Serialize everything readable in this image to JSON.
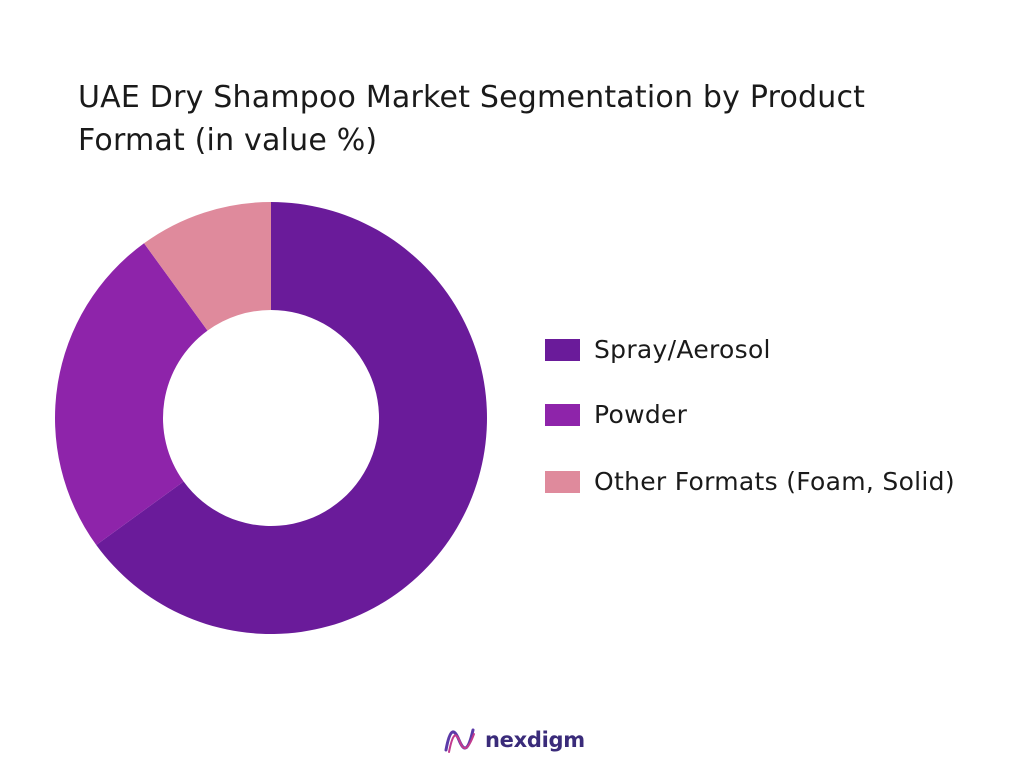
{
  "title": {
    "line1": "UAE Dry Shampoo Market Segmentation by Product",
    "line2": "Format (in value %)"
  },
  "chart_data": {
    "type": "pie",
    "variant": "donut",
    "categories": [
      "Spray/Aerosol",
      "Powder",
      "Other Formats (Foam, Solid)"
    ],
    "values": [
      65,
      25,
      10
    ],
    "colors": [
      "#6a1b9a",
      "#8e24aa",
      "#df8a9c"
    ],
    "legend_position": "right"
  },
  "brand": {
    "name": "nexdigm",
    "icon": "nexdigm-logo-icon"
  }
}
